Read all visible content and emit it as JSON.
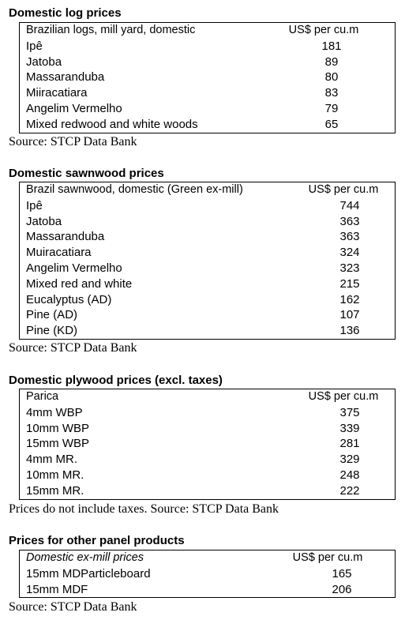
{
  "sections": [
    {
      "title": "Domestic log prices",
      "header": {
        "label": "Brazilian logs, mill yard, domestic",
        "unit": "US$ per cu.m"
      },
      "rows": [
        {
          "label": "Ipê",
          "value": "181"
        },
        {
          "label": "Jatoba",
          "value": "89"
        },
        {
          "label": "Massaranduba",
          "value": "80"
        },
        {
          "label": "Miiracatiara",
          "value": "83"
        },
        {
          "label": "Angelim Vermelho",
          "value": "79"
        },
        {
          "label": "Mixed redwood and white woods",
          "value": "65"
        }
      ],
      "source": "Source: STCP Data Bank"
    },
    {
      "title": "Domestic sawnwood prices",
      "header": {
        "label": "Brazil sawnwood, domestic (Green ex-mill)",
        "unit": "US$ per cu.m"
      },
      "rows": [
        {
          "label": "Ipê",
          "value": "744"
        },
        {
          "label": "Jatoba",
          "value": "363"
        },
        {
          "label": "Massaranduba",
          "value": "363"
        },
        {
          "label": "Muiracatiara",
          "value": "324"
        },
        {
          "label": "Angelim Vermelho",
          "value": "323"
        },
        {
          "label": "Mixed red and white",
          "value": "215"
        },
        {
          "label": "Eucalyptus (AD)",
          "value": "162"
        },
        {
          "label": "Pine (AD)",
          "value": "107"
        },
        {
          "label": "Pine (KD)",
          "value": "136"
        }
      ],
      "source": "Source: STCP Data Bank"
    },
    {
      "title": "Domestic plywood prices (excl. taxes)",
      "header": {
        "label": "Parica",
        "unit": "US$ per cu.m"
      },
      "rows": [
        {
          "label": "4mm WBP",
          "value": "375"
        },
        {
          "label": "10mm WBP",
          "value": "339"
        },
        {
          "label": "15mm WBP",
          "value": "281"
        },
        {
          "label": "4mm MR.",
          "value": "329"
        },
        {
          "label": "10mm MR.",
          "value": "248"
        },
        {
          "label": "15mm MR.",
          "value": "222"
        }
      ],
      "source": "Prices do not include taxes. Source: STCP Data Bank"
    },
    {
      "title": "Prices for other panel products",
      "header": {
        "label": "Domestic ex-mill prices",
        "unit": "US$ per cu.m"
      },
      "rows": [
        {
          "label": "15mm MDParticleboard",
          "value": "165"
        },
        {
          "label": "15mm MDF",
          "value": "206"
        }
      ],
      "source": "Source: STCP Data Bank"
    }
  ]
}
